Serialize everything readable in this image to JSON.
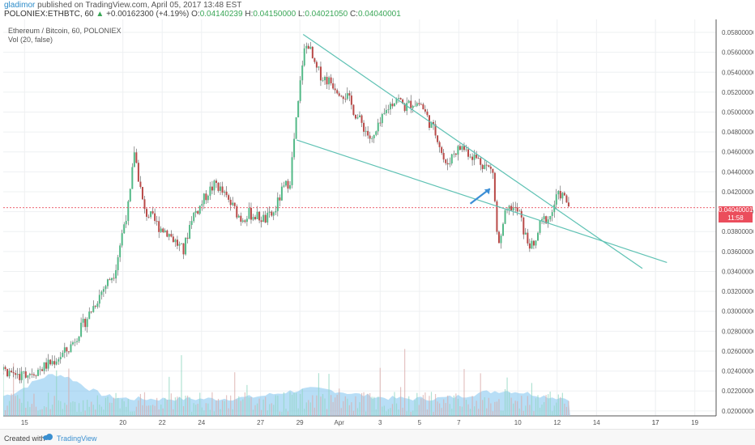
{
  "header": {
    "author": "gladimor",
    "published": "published on TradingView.com, April 05, 2017 13:48 EST",
    "symbol": "POLONIEX:ETHBTC, 60",
    "change_arrow": "▲",
    "change": "+0.00162300 (+4.19%)",
    "open_label": "O:",
    "open": "0.04140239",
    "high_label": "H:",
    "high": "0.04150000",
    "low_label": "L:",
    "low": "0.04021050",
    "close_label": "C:",
    "close": "0.04040001"
  },
  "legend": {
    "title": "Ethereum / Bitcoin, 60, POLONIEX",
    "indicator": "Vol (20, false)"
  },
  "price_tag": {
    "value": "0.04040001",
    "countdown": "11:58"
  },
  "footer": {
    "created": "Created with",
    "brand": "TradingView"
  },
  "colors": {
    "up": "#53b987",
    "down": "#b94a48",
    "trendline": "#5fc2b4",
    "volume_up": "#8fd6c0",
    "volume_area": "#7ec3ee",
    "arrow": "#3b8ed6",
    "last_price": "#eb4d5c"
  },
  "chart_data": {
    "type": "candlestick",
    "x_axis_labels": [
      "15",
      "17",
      "20",
      "22",
      "24",
      "27",
      "29",
      "Apr",
      "3",
      "5",
      "7",
      "10",
      "12",
      "14",
      "17",
      "19"
    ],
    "y_axis_labels": [
      "0.05800000",
      "0.05600000",
      "0.05400000",
      "0.05200000",
      "0.05000000",
      "0.04800000",
      "0.04600000",
      "0.04400000",
      "0.04200000",
      "0.04000000",
      "0.03800000",
      "0.03600000",
      "0.03400000",
      "0.03200000",
      "0.03000000",
      "0.02800000",
      "0.02600000",
      "0.02400000",
      "0.02200000",
      "0.02000000"
    ],
    "ylim": [
      0.0195,
      0.0593
    ],
    "last_price": 0.04040001,
    "grid": true,
    "price_path": [
      [
        0,
        0.0241
      ],
      [
        1,
        0.0236
      ],
      [
        2,
        0.024
      ],
      [
        3,
        0.0249
      ],
      [
        4,
        0.0262
      ],
      [
        5,
        0.029
      ],
      [
        6,
        0.032
      ],
      [
        6.8,
        0.034
      ],
      [
        7.4,
        0.039
      ],
      [
        7.7,
        0.041
      ],
      [
        8.0,
        0.0462
      ],
      [
        8.2,
        0.044
      ],
      [
        8.6,
        0.04
      ],
      [
        9.0,
        0.0395
      ],
      [
        9.5,
        0.0385
      ],
      [
        10.0,
        0.038
      ],
      [
        10.5,
        0.037
      ],
      [
        11.0,
        0.036
      ],
      [
        11.5,
        0.0395
      ],
      [
        12.0,
        0.0405
      ],
      [
        12.5,
        0.042
      ],
      [
        13.0,
        0.0428
      ],
      [
        13.5,
        0.0416
      ],
      [
        14.0,
        0.0405
      ],
      [
        14.5,
        0.0393
      ],
      [
        15.0,
        0.0398
      ],
      [
        15.5,
        0.0395
      ],
      [
        16.0,
        0.0392
      ],
      [
        16.5,
        0.0398
      ],
      [
        17.0,
        0.042
      ],
      [
        17.5,
        0.0432
      ],
      [
        17.8,
        0.048
      ],
      [
        18.0,
        0.0508
      ],
      [
        18.3,
        0.0558
      ],
      [
        18.6,
        0.057
      ],
      [
        19.0,
        0.0545
      ],
      [
        19.5,
        0.0535
      ],
      [
        20.0,
        0.053
      ],
      [
        20.5,
        0.0522
      ],
      [
        21.0,
        0.0515
      ],
      [
        21.5,
        0.0498
      ],
      [
        22.0,
        0.0485
      ],
      [
        22.5,
        0.047
      ],
      [
        23.0,
        0.0488
      ],
      [
        23.5,
        0.0505
      ],
      [
        24.0,
        0.0515
      ],
      [
        24.5,
        0.0505
      ],
      [
        25.0,
        0.051
      ],
      [
        25.5,
        0.0508
      ],
      [
        26.0,
        0.049
      ],
      [
        26.5,
        0.0475
      ],
      [
        27.0,
        0.0445
      ],
      [
        27.5,
        0.046
      ],
      [
        28.0,
        0.0465
      ],
      [
        28.5,
        0.0458
      ],
      [
        29.0,
        0.0452
      ],
      [
        29.5,
        0.0445
      ],
      [
        29.9,
        0.044
      ],
      [
        30.1,
        0.038
      ],
      [
        30.3,
        0.0365
      ],
      [
        30.6,
        0.0395
      ],
      [
        31.0,
        0.0405
      ],
      [
        31.5,
        0.0398
      ],
      [
        31.8,
        0.0378
      ],
      [
        32.0,
        0.037
      ],
      [
        32.4,
        0.0362
      ],
      [
        32.7,
        0.0385
      ],
      [
        33.0,
        0.0392
      ],
      [
        33.4,
        0.0395
      ],
      [
        33.7,
        0.0412
      ],
      [
        34.0,
        0.0418
      ],
      [
        34.3,
        0.0412
      ],
      [
        34.6,
        0.0404
      ]
    ],
    "x_day_index": {
      "15": 1.3,
      "17": 39.8,
      "20": 7.3,
      "22": 9.7,
      "24": 12.1,
      "27": 15.7,
      "29": 18.1,
      "Apr": 20.5,
      "3": 23.0,
      "5": 25.4,
      "7": 27.8,
      "10": 31.4,
      "12": 33.8,
      "14": 36.2,
      "19": 42.2
    },
    "trendlines": [
      {
        "from": [
          18.3,
          0.0578
        ],
        "to": [
          39.0,
          0.0343
        ]
      },
      {
        "from": [
          17.9,
          0.0472
        ],
        "to": [
          40.5,
          0.0349
        ]
      }
    ],
    "arrow": {
      "from": [
        28.5,
        0.0408
      ],
      "to": [
        29.7,
        0.0423
      ]
    }
  }
}
